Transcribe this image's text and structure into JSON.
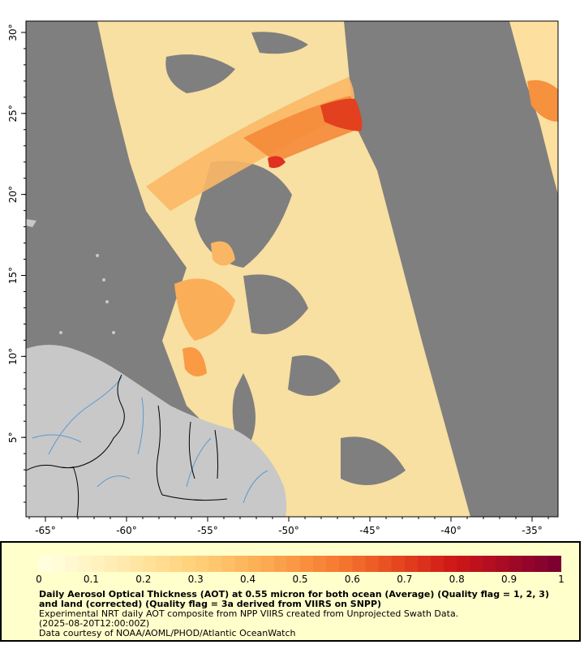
{
  "map": {
    "x_ticks": [
      {
        "lon": -65,
        "label": "-65°"
      },
      {
        "lon": -60,
        "label": "-60°"
      },
      {
        "lon": -55,
        "label": "-55°"
      },
      {
        "lon": -50,
        "label": "-50°"
      },
      {
        "lon": -45,
        "label": "-45°"
      },
      {
        "lon": -40,
        "label": "-40°"
      },
      {
        "lon": -35,
        "label": "-35°"
      }
    ],
    "y_ticks": [
      {
        "lat": 30,
        "label": "30°"
      },
      {
        "lat": 25,
        "label": "25°"
      },
      {
        "lat": 20,
        "label": "20°"
      },
      {
        "lat": 15,
        "label": "15°"
      },
      {
        "lat": 10,
        "label": "10°"
      },
      {
        "lat": 5,
        "label": "5°"
      }
    ],
    "lon_range": [
      -66.2,
      -33.4
    ],
    "lat_range": [
      0.1,
      30.7
    ],
    "colors": {
      "no_data": "#7f7f7f",
      "land": "#c8c8c8",
      "river": "#5a9ad0",
      "border": "#000000"
    }
  },
  "legend": {
    "colorbar_ticks": [
      "0",
      "0.1",
      "0.2",
      "0.3",
      "0.4",
      "0.5",
      "0.6",
      "0.7",
      "0.8",
      "0.9",
      "1"
    ],
    "title": "Daily Aerosol Optical Thickness (AOT) at 0.55 micron for both ocean (Average) (Quality flag = 1, 2, 3) and land (corrected) (Quality flag = 3a derived from VIIRS on SNPP)",
    "line1": "Experimental NRT daily AOT composite from NPP VIIRS created from Unprojected Swath Data.",
    "line2": "(2025-08-20T12:00:00Z)",
    "line3": "Data courtesy of NOAA/AOML/PHOD/Atlantic OceanWatch",
    "background": "#ffffcc",
    "colorbar_colors": [
      "#ffffe0",
      "#fff2c0",
      "#ffe29a",
      "#ffcf78",
      "#fdb45a",
      "#fa9440",
      "#f3702c",
      "#e4431e",
      "#cf1818",
      "#a80a24",
      "#7d0030"
    ]
  }
}
